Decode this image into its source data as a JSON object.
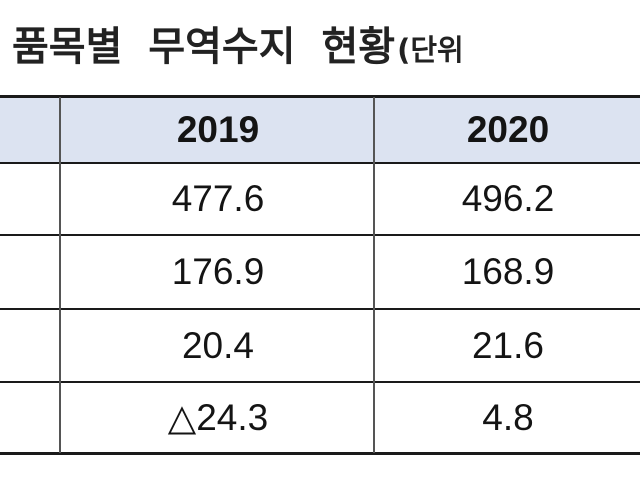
{
  "title": {
    "main": "품목별 무역수지 현황",
    "unit_fragment": "(단위"
  },
  "table": {
    "columns": [
      "2019",
      "2020"
    ],
    "rows": [
      [
        "477.6",
        "496.2"
      ],
      [
        "176.9",
        "168.9"
      ],
      [
        "20.4",
        "21.6"
      ],
      [
        "△24.3",
        "4.8"
      ]
    ]
  },
  "colors": {
    "header_background": "#dce3f1",
    "border": "#1a1a1a",
    "text": "#141414"
  }
}
